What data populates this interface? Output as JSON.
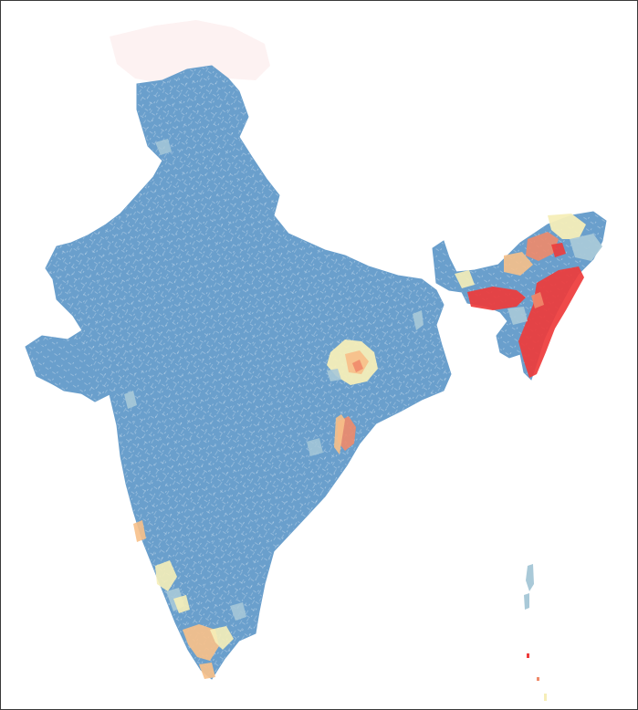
{
  "map": {
    "subject": "India",
    "layer": "choropleth",
    "legend_visible": false,
    "colors": {
      "background": "#ffffff",
      "frame": "#3a3a3a",
      "base": "#6a9fcc",
      "pale_blue": "#a9c9d8",
      "pale_yellow": "#f6eeb8",
      "peach": "#f7c08a",
      "salmon": "#ef8a6a",
      "red": "#ee3b3b",
      "mask": "#fdf2f2"
    },
    "scale": [
      "#6a9fcc",
      "#a9c9d8",
      "#f6eeb8",
      "#f7c08a",
      "#ef8a6a",
      "#ee3b3b"
    ]
  }
}
